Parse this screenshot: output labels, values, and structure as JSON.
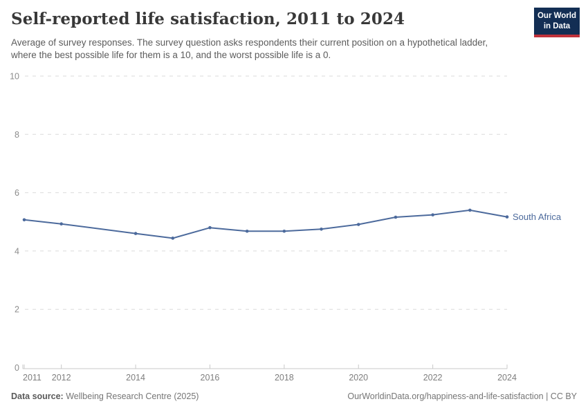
{
  "header": {
    "title": "Self-reported life satisfaction, 2011 to 2024",
    "subtitle": "Average of survey responses. The survey question asks respondents their current position on a hypothetical ladder, where the best possible life for them is a 10, and the worst possible life is a 0.",
    "logo": {
      "line1": "Our World",
      "line2": "in Data",
      "bg_color": "#132E54",
      "bar_color": "#C0323B"
    }
  },
  "chart_data": {
    "type": "line",
    "title": "Self-reported life satisfaction, 2011 to 2024",
    "xlabel": "",
    "ylabel": "",
    "xlim": [
      2011,
      2024
    ],
    "ylim": [
      0,
      10
    ],
    "x_ticks": [
      2011,
      2012,
      2014,
      2016,
      2018,
      2020,
      2022,
      2024
    ],
    "y_ticks": [
      0,
      2,
      4,
      6,
      8,
      10
    ],
    "grid": "horizontal-dashed",
    "legend_position": "end-of-line-label",
    "entity_label": "South Africa",
    "series": [
      {
        "name": "South Africa",
        "color": "#4C6A9C",
        "points": [
          {
            "year": 2011,
            "value": 5.07
          },
          {
            "year": 2012,
            "value": 4.93
          },
          {
            "year": 2014,
            "value": 4.6
          },
          {
            "year": 2015,
            "value": 4.44
          },
          {
            "year": 2016,
            "value": 4.8
          },
          {
            "year": 2017,
            "value": 4.68
          },
          {
            "year": 2018,
            "value": 4.68
          },
          {
            "year": 2019,
            "value": 4.75
          },
          {
            "year": 2020,
            "value": 4.91
          },
          {
            "year": 2021,
            "value": 5.16
          },
          {
            "year": 2022,
            "value": 5.24
          },
          {
            "year": 2023,
            "value": 5.4
          },
          {
            "year": 2024,
            "value": 5.17
          }
        ]
      }
    ],
    "style": {
      "gridline_color": "#DBDBDB",
      "axis_color": "#C8C8C8",
      "y_tick_label_color": "#8C8C8C",
      "x_tick_label_color": "#7E7E7E"
    }
  },
  "footer": {
    "datasource_label": "Data source:",
    "datasource_value": "Wellbeing Research Centre (2025)",
    "credit": "OurWorldinData.org/happiness-and-life-satisfaction | CC BY"
  }
}
